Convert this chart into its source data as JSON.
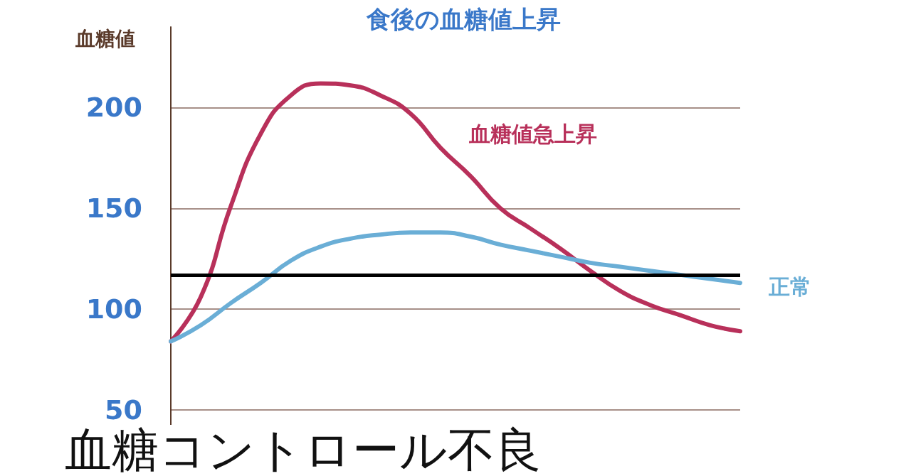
{
  "chart_data": {
    "type": "line",
    "title": "食後の血糖値上昇",
    "ylabel": "血糖値",
    "categories": [
      null,
      null,
      null,
      null,
      null,
      null,
      null,
      null,
      null,
      null,
      null,
      null,
      null,
      null,
      null,
      null,
      null,
      null,
      null,
      null
    ],
    "series": [
      {
        "name": "血糖値急上昇",
        "color": "#b8305a",
        "values": [
          84,
          106,
          151,
          187,
          206,
          212,
          211,
          206,
          197,
          180,
          166,
          150,
          140,
          130,
          119,
          109,
          102,
          97,
          92,
          89
        ]
      },
      {
        "name": "正常",
        "color": "#6aaed6",
        "values": [
          84,
          92,
          103,
          113,
          124,
          131,
          135,
          137,
          138,
          138,
          136,
          132,
          129,
          126,
          123,
          121,
          119,
          117,
          115,
          113
        ]
      }
    ],
    "ylim": [
      20,
      240
    ],
    "yticks": [
      50,
      100,
      150,
      200
    ],
    "grid": "y",
    "marker": "none",
    "line_style": "solid",
    "ref_lines": [
      {
        "axis": "y",
        "value": 117,
        "color": "#000000"
      }
    ],
    "annotations": [
      "血糖コントロール不良"
    ]
  }
}
